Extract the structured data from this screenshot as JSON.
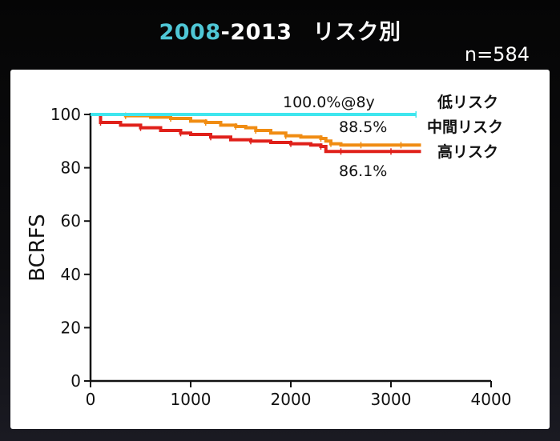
{
  "slide": {
    "title_year_start": "2008",
    "title_dash": "-",
    "title_year_end": "2013",
    "title_text": "リスク別",
    "n_label": "n=584"
  },
  "colors": {
    "background": "#000000",
    "accent": "#4fc7d6",
    "low_risk": "#3fe6ee",
    "intermediate_risk": "#f08c12",
    "high_risk": "#e0201a"
  },
  "chart_data": {
    "type": "line",
    "title": "",
    "xlabel": "",
    "ylabel": "BCRFS",
    "xlim": [
      0,
      4000
    ],
    "ylim": [
      0,
      100
    ],
    "xticks": [
      0,
      1000,
      2000,
      3000,
      4000
    ],
    "yticks": [
      0,
      20,
      40,
      60,
      80,
      100
    ],
    "grid": false,
    "legend_placement": "right",
    "series": [
      {
        "name": "低リスク",
        "color": "#3fe6ee",
        "annotation": "100.0%@8y",
        "x": [
          0,
          3250
        ],
        "y": [
          100,
          100
        ]
      },
      {
        "name": "中間リスク",
        "color": "#f08c12",
        "annotation": "88.5%",
        "x": [
          0,
          350,
          600,
          800,
          1000,
          1150,
          1300,
          1450,
          1550,
          1650,
          1800,
          1950,
          2100,
          2300,
          2350,
          2400,
          2500,
          2700,
          2900,
          3100,
          3300
        ],
        "y": [
          100,
          99.5,
          99,
          98.5,
          97.5,
          97,
          96,
          95.5,
          95,
          94,
          93,
          92,
          91.5,
          91,
          90,
          89,
          88.5,
          88.5,
          88.5,
          88.5,
          88.5
        ]
      },
      {
        "name": "高リスク",
        "color": "#e0201a",
        "annotation": "86.1%",
        "x": [
          0,
          100,
          300,
          500,
          700,
          900,
          1000,
          1200,
          1400,
          1600,
          1800,
          2000,
          2200,
          2300,
          2350,
          2500,
          2800,
          3000,
          3300
        ],
        "y": [
          100,
          97,
          96,
          95,
          94,
          93,
          92.5,
          91.5,
          90.5,
          90,
          89.5,
          89,
          88.5,
          88,
          86.1,
          86.1,
          86.1,
          86.1,
          86.1
        ]
      }
    ]
  }
}
